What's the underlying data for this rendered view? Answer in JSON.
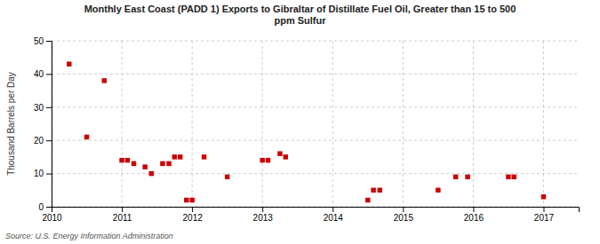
{
  "chart_data": {
    "type": "scatter",
    "title": "Monthly East Coast (PADD 1) Exports to Gibraltar of Distillate Fuel Oil, Greater than 15 to 500\nppm Sulfur",
    "ylabel": "Thousand Barrels per Day",
    "source": "Source: U.S. Energy Information Administration",
    "color": "#cc0000",
    "marker": "square",
    "grid": true,
    "xlim": [
      2010.0,
      2017.5
    ],
    "ylim": [
      0,
      50
    ],
    "xticks": [
      2010,
      2011,
      2012,
      2013,
      2014,
      2015,
      2016,
      2017
    ],
    "yticks": [
      0,
      10,
      20,
      30,
      40,
      50
    ],
    "x": [
      2010.25,
      2010.5,
      2010.75,
      2011.0,
      2011.08,
      2011.17,
      2011.33,
      2011.42,
      2011.58,
      2011.67,
      2011.75,
      2011.83,
      2011.92,
      2012.0,
      2012.17,
      2012.5,
      2013.0,
      2013.08,
      2013.25,
      2013.33,
      2014.5,
      2014.58,
      2014.67,
      2015.5,
      2015.75,
      2015.92,
      2016.5,
      2016.58,
      2017.0
    ],
    "values": [
      43,
      21,
      38,
      14,
      14,
      13,
      12,
      10,
      13,
      13,
      15,
      15,
      2,
      2,
      15,
      9,
      14,
      14,
      16,
      15,
      2,
      5,
      5,
      5,
      9,
      9,
      9,
      9,
      3
    ]
  }
}
